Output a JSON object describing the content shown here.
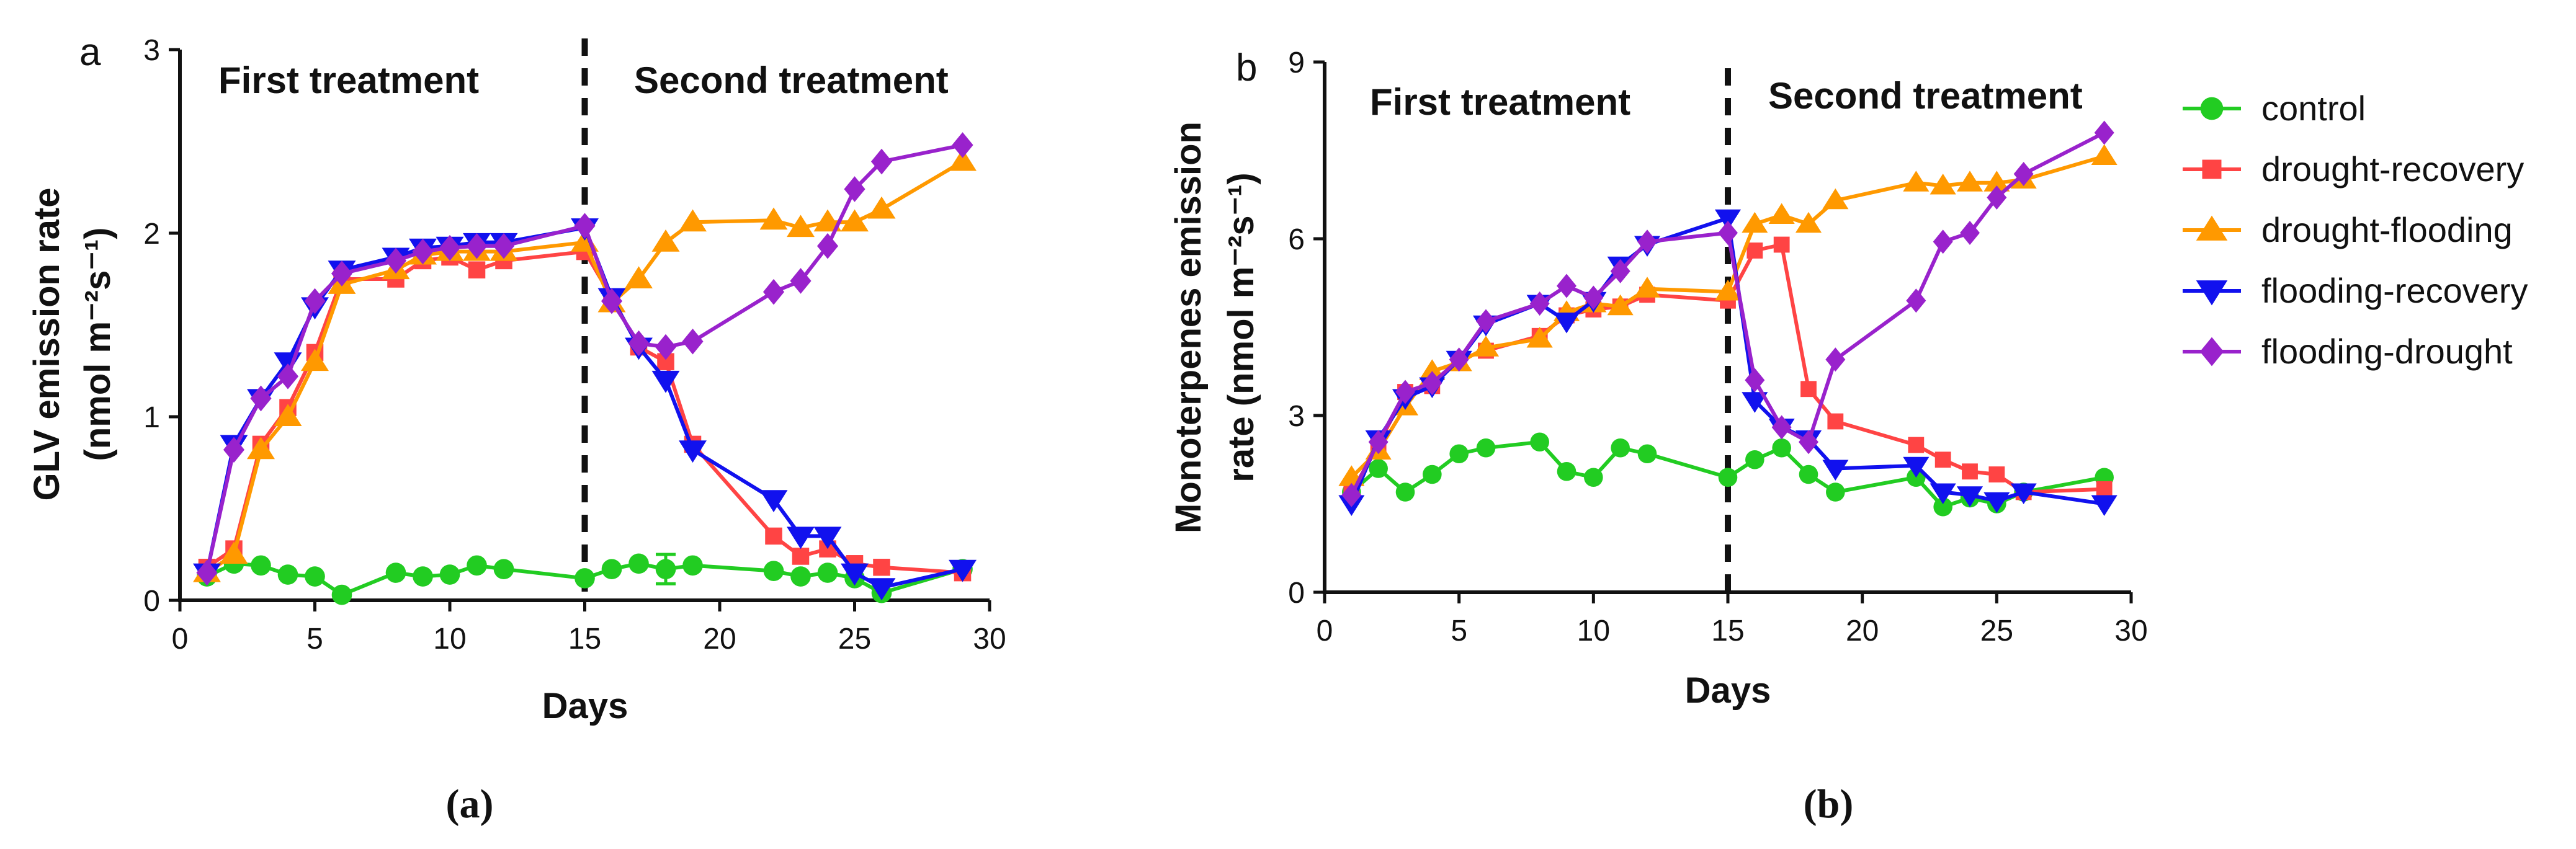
{
  "chart_data": [
    {
      "type": "line",
      "panel_letter": "a",
      "caption": "(a)",
      "xlabel": "Days",
      "ylabel_line1": "GLV emission rate",
      "ylabel_line2": "(nmol m⁻²s⁻¹)",
      "xlim": [
        0,
        30
      ],
      "ylim": [
        0,
        3
      ],
      "xticks": [
        0,
        5,
        10,
        15,
        20,
        25,
        30
      ],
      "yticks": [
        0,
        1,
        2,
        3
      ],
      "divider_x": 15,
      "annotations": [
        "First treatment",
        "Second treatment"
      ],
      "series": [
        {
          "name": "control",
          "color": "#22cc22",
          "marker": "circle",
          "x": [
            1,
            2,
            3,
            4,
            5,
            6,
            8,
            9,
            10,
            11,
            12,
            15,
            16,
            17,
            18,
            19,
            22,
            23,
            24,
            25,
            26,
            29
          ],
          "y": [
            0.13,
            0.2,
            0.19,
            0.14,
            0.13,
            0.03,
            0.15,
            0.13,
            0.14,
            0.19,
            0.17,
            0.12,
            0.17,
            0.2,
            0.17,
            0.19,
            0.16,
            0.13,
            0.15,
            0.12,
            0.04,
            0.17
          ],
          "error_bars": [
            {
              "x": 18,
              "low": 0.09,
              "high": 0.25
            }
          ]
        },
        {
          "name": "drought-recovery",
          "color": "#ff4444",
          "marker": "square",
          "x": [
            1,
            2,
            3,
            4,
            5,
            6,
            8,
            9,
            10,
            11,
            12,
            15,
            16,
            17,
            18,
            19,
            22,
            23,
            24,
            25,
            26,
            29
          ],
          "y": [
            0.18,
            0.28,
            0.85,
            1.05,
            1.35,
            1.75,
            1.75,
            1.85,
            1.87,
            1.8,
            1.85,
            1.9,
            1.65,
            1.38,
            1.3,
            0.85,
            0.35,
            0.24,
            0.28,
            0.2,
            0.18,
            0.15
          ]
        },
        {
          "name": "drought-flooding",
          "color": "#ff9900",
          "marker": "triangle-up",
          "x": [
            1,
            2,
            3,
            4,
            5,
            6,
            8,
            9,
            10,
            11,
            12,
            15,
            16,
            17,
            18,
            19,
            22,
            23,
            24,
            25,
            26,
            29
          ],
          "y": [
            0.15,
            0.25,
            0.82,
            1.0,
            1.3,
            1.72,
            1.8,
            1.88,
            1.9,
            1.9,
            1.9,
            1.95,
            1.62,
            1.75,
            1.95,
            2.06,
            2.07,
            2.03,
            2.06,
            2.06,
            2.13,
            2.39
          ]
        },
        {
          "name": "flooding-recovery",
          "color": "#1111ee",
          "marker": "triangle-down",
          "x": [
            1,
            2,
            3,
            4,
            5,
            6,
            8,
            9,
            10,
            11,
            12,
            15,
            16,
            17,
            18,
            19,
            22,
            23,
            24,
            25,
            26,
            29
          ],
          "y": [
            0.15,
            0.85,
            1.1,
            1.3,
            1.6,
            1.8,
            1.87,
            1.92,
            1.93,
            1.95,
            1.95,
            2.03,
            1.65,
            1.38,
            1.2,
            0.82,
            0.55,
            0.35,
            0.35,
            0.15,
            0.07,
            0.17
          ]
        },
        {
          "name": "flooding-drought",
          "color": "#9922cc",
          "marker": "diamond",
          "x": [
            1,
            2,
            3,
            4,
            5,
            6,
            8,
            9,
            10,
            11,
            12,
            15,
            16,
            17,
            18,
            19,
            22,
            23,
            24,
            25,
            26,
            29
          ],
          "y": [
            0.15,
            0.82,
            1.1,
            1.22,
            1.63,
            1.78,
            1.85,
            1.9,
            1.92,
            1.93,
            1.93,
            2.04,
            1.63,
            1.4,
            1.38,
            1.41,
            1.68,
            1.74,
            1.93,
            2.24,
            2.39,
            2.48
          ]
        }
      ]
    },
    {
      "type": "line",
      "panel_letter": "b",
      "caption": "(b)",
      "xlabel": "Days",
      "ylabel_line1": "Monoterpenes emission",
      "ylabel_line2": "rate (nmol m⁻²s⁻¹)",
      "xlim": [
        0,
        30
      ],
      "ylim": [
        0,
        9
      ],
      "xticks": [
        0,
        5,
        10,
        15,
        20,
        25,
        30
      ],
      "yticks": [
        0,
        3,
        6,
        9
      ],
      "divider_x": 15,
      "annotations": [
        "First treatment",
        "Second treatment"
      ],
      "series": [
        {
          "name": "control",
          "color": "#22cc22",
          "marker": "circle",
          "x": [
            1,
            2,
            3,
            4,
            5,
            6,
            8,
            9,
            10,
            11,
            12,
            15,
            16,
            17,
            18,
            19,
            22,
            23,
            24,
            25,
            26,
            29
          ],
          "y": [
            1.7,
            2.1,
            1.7,
            2.0,
            2.35,
            2.45,
            2.55,
            2.05,
            1.95,
            2.45,
            2.35,
            1.95,
            2.25,
            2.45,
            2.0,
            1.7,
            1.95,
            1.45,
            1.6,
            1.5,
            1.7,
            1.95
          ]
        },
        {
          "name": "drought-recovery",
          "color": "#ff4444",
          "marker": "square",
          "x": [
            1,
            2,
            3,
            4,
            5,
            6,
            8,
            9,
            10,
            11,
            12,
            15,
            16,
            17,
            18,
            19,
            22,
            23,
            24,
            25,
            26,
            29
          ],
          "y": [
            1.7,
            2.5,
            3.4,
            3.5,
            3.95,
            4.1,
            4.35,
            4.7,
            4.8,
            4.85,
            5.05,
            4.95,
            5.8,
            5.9,
            3.45,
            2.9,
            2.5,
            2.25,
            2.05,
            2.0,
            1.7,
            1.75
          ]
        },
        {
          "name": "drought-flooding",
          "color": "#ff9900",
          "marker": "triangle-up",
          "x": [
            1,
            2,
            3,
            4,
            5,
            6,
            8,
            9,
            10,
            11,
            12,
            15,
            16,
            17,
            18,
            19,
            22,
            23,
            24,
            25,
            26,
            29
          ],
          "y": [
            1.95,
            2.4,
            3.15,
            3.75,
            3.9,
            4.15,
            4.3,
            4.75,
            4.9,
            4.85,
            5.15,
            5.1,
            6.25,
            6.4,
            6.25,
            6.65,
            6.95,
            6.9,
            6.95,
            6.95,
            7.0,
            7.4
          ]
        },
        {
          "name": "flooding-recovery",
          "color": "#1111ee",
          "marker": "triangle-down",
          "x": [
            1,
            2,
            3,
            4,
            5,
            6,
            8,
            9,
            10,
            11,
            12,
            15,
            16,
            17,
            18,
            19,
            22,
            23,
            24,
            25,
            26,
            29
          ],
          "y": [
            1.5,
            2.6,
            3.3,
            3.5,
            3.95,
            4.55,
            4.9,
            4.6,
            4.95,
            5.55,
            5.9,
            6.35,
            3.25,
            2.8,
            2.6,
            2.1,
            2.15,
            1.7,
            1.65,
            1.55,
            1.7,
            1.5
          ]
        },
        {
          "name": "flooding-drought",
          "color": "#9922cc",
          "marker": "diamond",
          "x": [
            1,
            2,
            3,
            4,
            5,
            6,
            8,
            9,
            10,
            11,
            12,
            15,
            16,
            17,
            18,
            19,
            22,
            23,
            24,
            25,
            26,
            29
          ],
          "y": [
            1.65,
            2.55,
            3.4,
            3.55,
            3.95,
            4.6,
            4.9,
            5.2,
            5.0,
            5.45,
            5.95,
            6.1,
            3.6,
            2.8,
            2.55,
            3.95,
            4.95,
            5.95,
            6.1,
            6.7,
            7.1,
            7.8
          ]
        }
      ]
    }
  ],
  "legend": [
    {
      "label": "control",
      "color": "#22cc22",
      "marker": "circle"
    },
    {
      "label": "drought-recovery",
      "color": "#ff4444",
      "marker": "square"
    },
    {
      "label": "drought-flooding",
      "color": "#ff9900",
      "marker": "triangle-up"
    },
    {
      "label": "flooding-recovery",
      "color": "#1111ee",
      "marker": "triangle-down"
    },
    {
      "label": "flooding-drought",
      "color": "#9922cc",
      "marker": "diamond"
    }
  ]
}
